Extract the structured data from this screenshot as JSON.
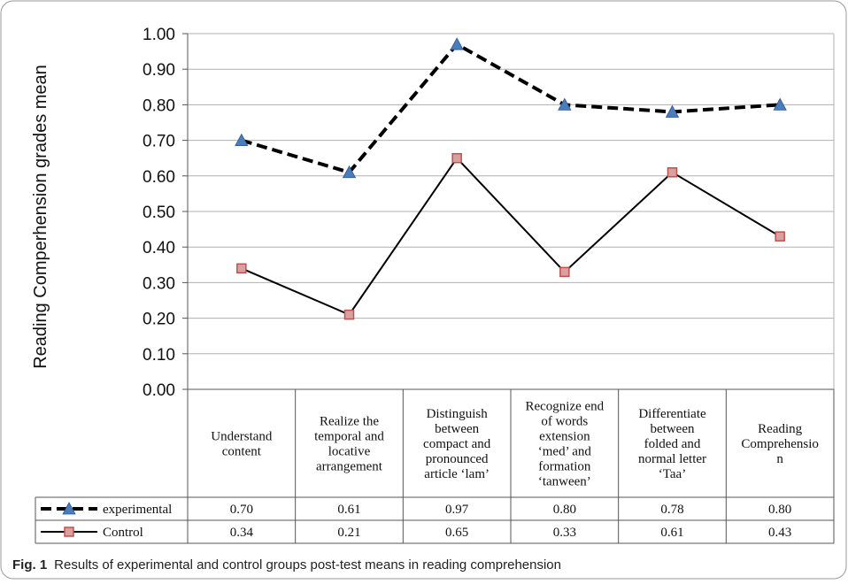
{
  "figure": {
    "caption_label": "Fig. 1",
    "caption_text": "Results of experimental and control groups post-test means in reading comprehension"
  },
  "chart_data": {
    "type": "line",
    "title": "",
    "ylabel": "Reading Comperhension grades mean",
    "xlabel": "",
    "ylim": [
      0,
      1
    ],
    "yticks": [
      "0.00",
      "0.10",
      "0.20",
      "0.30",
      "0.40",
      "0.50",
      "0.60",
      "0.70",
      "0.80",
      "0.90",
      "1.00"
    ],
    "grid": true,
    "legend_placement": "data-table-left",
    "categories": [
      [
        "Understand",
        "content"
      ],
      [
        "Realize the",
        "temporal and",
        "locative",
        "arrangement"
      ],
      [
        "Distinguish",
        "between",
        "compact and",
        "pronounced",
        "article ‘lam’"
      ],
      [
        "Recognize end",
        "of words",
        "extension",
        "‘med’ and",
        "formation",
        "‘tanween’"
      ],
      [
        "Differentiate",
        "between",
        "folded and",
        "normal letter",
        "‘Taa’"
      ],
      [
        "Reading",
        "Comprehensio",
        "n"
      ]
    ],
    "series": [
      {
        "name": "experimental",
        "values": [
          0.7,
          0.61,
          0.97,
          0.8,
          0.78,
          0.8
        ],
        "labels": [
          "0.70",
          "0.61",
          "0.97",
          "0.80",
          "0.78",
          "0.80"
        ],
        "line_style": "dashed",
        "marker": "triangle",
        "line_color": "#000000",
        "marker_color": "#4a7ebb"
      },
      {
        "name": "Control",
        "values": [
          0.34,
          0.21,
          0.65,
          0.33,
          0.61,
          0.43
        ],
        "labels": [
          "0.34",
          "0.21",
          "0.65",
          "0.33",
          "0.61",
          "0.43"
        ],
        "line_style": "solid",
        "marker": "square",
        "line_color": "#000000",
        "marker_color": "#d9a0a0",
        "marker_edge": "#c0504d"
      }
    ]
  }
}
